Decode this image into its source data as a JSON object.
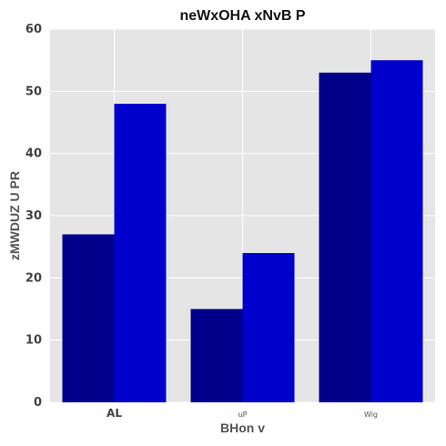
{
  "chart_data": {
    "type": "bar",
    "title": "neWxOHA xNvB P",
    "xlabel": "BHon v",
    "ylabel": "zMWDUZ U PR",
    "categories": [
      "AL",
      "uP",
      "Wig"
    ],
    "series": [
      {
        "values": [
          27,
          15,
          53
        ],
        "color": "#00008b"
      },
      {
        "values": [
          48,
          24,
          55
        ],
        "color": "#0000cd"
      }
    ],
    "ylim": [
      0,
      60
    ],
    "yticks": [
      0,
      10,
      20,
      30,
      40,
      50,
      60
    ],
    "grid": true,
    "legend": "none",
    "background_color": "#e5e5e5",
    "grid_color": "#ffffff"
  }
}
